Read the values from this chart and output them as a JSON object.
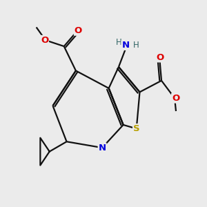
{
  "bg": "#ebebeb",
  "bc": "#111111",
  "lw": 1.6,
  "S_color": "#b8a000",
  "N_color": "#0000dd",
  "O_color": "#dd0000",
  "NH_color": "#336666",
  "figsize": [
    3.0,
    3.0
  ],
  "dpi": 100,
  "xlim": [
    0,
    10
  ],
  "ylim": [
    0,
    10
  ]
}
